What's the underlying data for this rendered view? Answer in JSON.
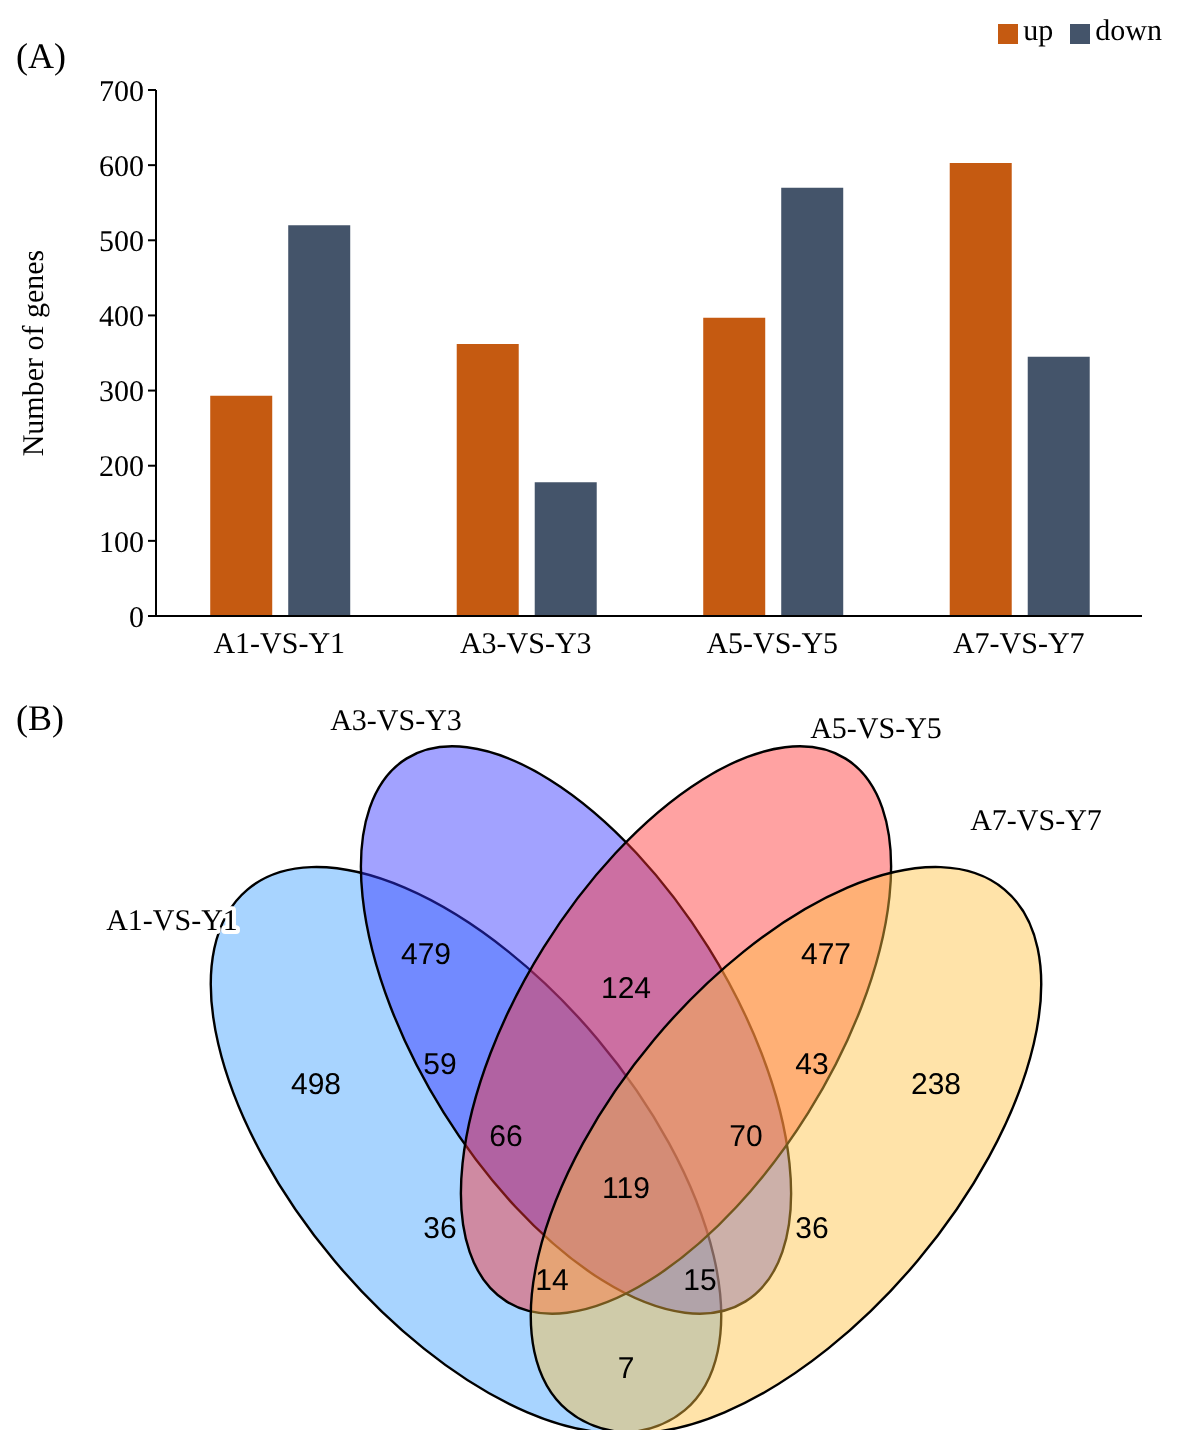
{
  "chart_data": [
    {
      "type": "bar",
      "title": "(A)",
      "ylabel": "Number of genes",
      "categories": [
        "A1-VS-Y1",
        "A3-VS-Y3",
        "A5-VS-Y5",
        "A7-VS-Y7"
      ],
      "series": [
        {
          "name": "up",
          "color": "#c55a11",
          "values": [
            293,
            362,
            397,
            603
          ]
        },
        {
          "name": "down",
          "color": "#44546a",
          "values": [
            520,
            178,
            570,
            345
          ]
        }
      ],
      "ylim": [
        0,
        700
      ],
      "yticks": [
        0,
        100,
        200,
        300,
        400,
        500,
        600,
        700
      ],
      "grid": false,
      "legend": "top right"
    },
    {
      "type": "other",
      "title": "(B)",
      "categories": [
        "A1-VS-Y1",
        "A3-VS-Y3",
        "A5-VS-Y5",
        "A7-VS-Y7"
      ],
      "colors": [
        "#3fa0ff",
        "#3030ff",
        "#ff3030",
        "#ffc040"
      ],
      "annotations": [
        "498",
        "479",
        "477",
        "238",
        "59",
        "124",
        "43",
        "66",
        "70",
        "119",
        "36",
        "36",
        "14",
        "15",
        "7"
      ]
    }
  ]
}
